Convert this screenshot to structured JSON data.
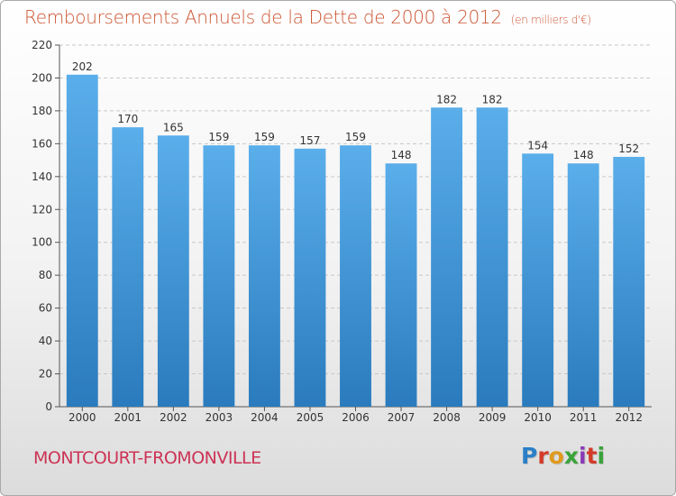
{
  "chart_data": {
    "type": "bar",
    "title": "Remboursements Annuels de la Dette de 2000 à 2012",
    "unit": "(en milliers d'€)",
    "categories": [
      "2000",
      "2001",
      "2002",
      "2003",
      "2004",
      "2005",
      "2006",
      "2007",
      "2008",
      "2009",
      "2010",
      "2011",
      "2012"
    ],
    "values": [
      202,
      170,
      165,
      159,
      159,
      157,
      159,
      148,
      182,
      182,
      154,
      148,
      152
    ],
    "xlabel": "",
    "ylabel": "",
    "ylim": [
      0,
      220
    ],
    "yticks": [
      0,
      20,
      40,
      60,
      80,
      100,
      120,
      140,
      160,
      180,
      200,
      220
    ],
    "grid": true,
    "legend": "none",
    "colors": {
      "bar_top": "#5aaeea",
      "bar_bottom": "#2a7bbd",
      "grid": "#c8c8c8",
      "title": "#cc5533"
    }
  },
  "footer": {
    "location": "MONTCOURT-FROMONVILLE",
    "logo": "Proxiti",
    "location_color": "#cc3355"
  }
}
